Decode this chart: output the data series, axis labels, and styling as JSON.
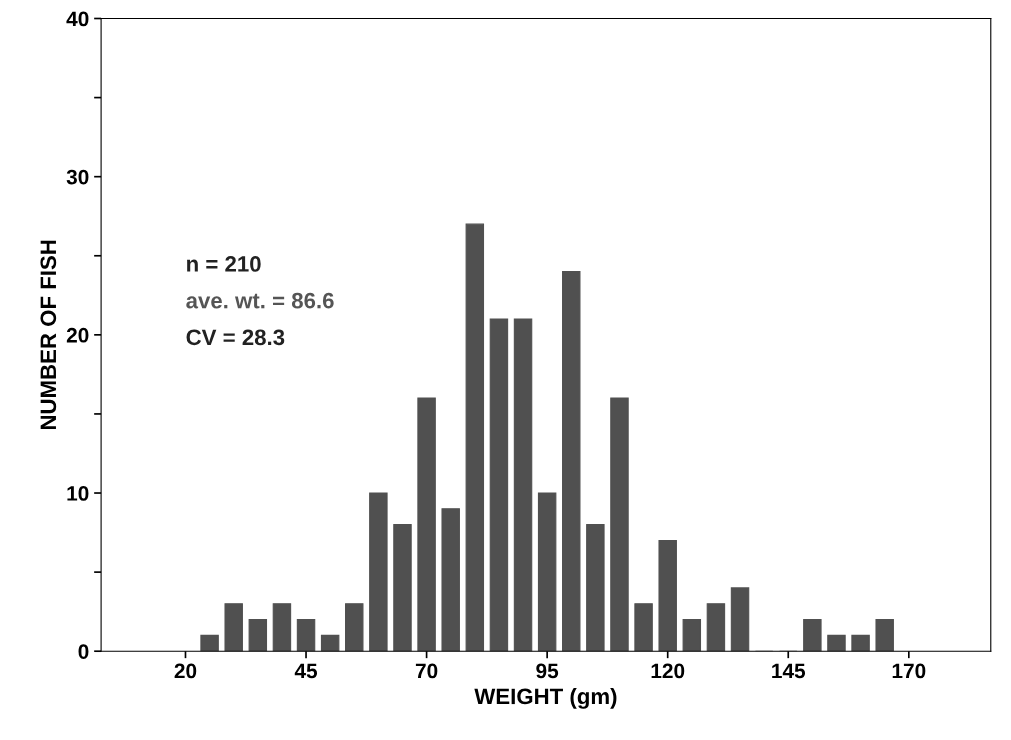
{
  "chart_data": {
    "type": "bar",
    "xlabel": "WEIGHT (gm)",
    "ylabel": "NUMBER OF FISH",
    "x": [
      25,
      30,
      35,
      40,
      45,
      50,
      55,
      60,
      65,
      70,
      75,
      80,
      85,
      90,
      95,
      100,
      105,
      110,
      115,
      120,
      125,
      130,
      135,
      140,
      145,
      150,
      155,
      160,
      165
    ],
    "values": [
      1,
      3,
      2,
      3,
      2,
      1,
      3,
      10,
      8,
      16,
      9,
      27,
      21,
      21,
      10,
      24,
      8,
      16,
      3,
      7,
      2,
      3,
      4,
      0,
      0,
      2,
      1,
      1,
      2
    ],
    "color": "#505050",
    "xlim": [
      2.5,
      187
    ],
    "xticks": [
      20,
      45,
      70,
      95,
      120,
      145,
      170
    ],
    "ylim": [
      0,
      40
    ],
    "yticks": [
      0,
      {
        "value": 5,
        "label": null
      },
      10,
      {
        "value": 15,
        "label": null
      },
      20,
      {
        "value": 25,
        "label": null
      },
      30,
      {
        "value": 35,
        "label": null
      },
      40
    ],
    "grid": false,
    "legend": false,
    "annotations": [
      "n = 210",
      "ave. wt. = 86.6",
      "CV = 28.3"
    ]
  }
}
